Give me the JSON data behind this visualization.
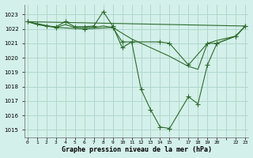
{
  "title": "Graphe pression niveau de la mer (hPa)",
  "background_color": "#d4f0ea",
  "grid_color": "#b0d8cc",
  "line_color": "#2d6b2d",
  "ylim": [
    1014.5,
    1023.7
  ],
  "yticks": [
    1015,
    1016,
    1017,
    1018,
    1019,
    1020,
    1021,
    1022,
    1023
  ],
  "xlim": [
    -0.3,
    23.3
  ],
  "xtick_labels": [
    "0",
    "1",
    "2",
    "3",
    "4",
    "5",
    "6",
    "7",
    "8",
    "9",
    "10",
    "11",
    "12",
    "13",
    "14",
    "15",
    "",
    "17",
    "18",
    "19",
    "20",
    "",
    "22",
    "23"
  ],
  "series1_x": [
    0,
    1,
    2,
    3,
    4,
    5,
    6,
    7,
    8,
    9,
    10,
    11,
    12,
    13,
    14,
    15,
    17,
    18,
    19,
    20,
    22,
    23
  ],
  "series1_y": [
    1022.5,
    1022.35,
    1022.2,
    1022.15,
    1022.5,
    1022.15,
    1022.15,
    1022.2,
    1023.2,
    1022.2,
    1020.7,
    1021.1,
    1017.8,
    1016.4,
    1015.2,
    1015.1,
    1017.3,
    1016.8,
    1019.5,
    1021.0,
    1021.5,
    1022.2
  ],
  "series2_x": [
    0,
    1,
    2,
    3,
    4,
    5,
    6,
    7,
    8,
    9,
    10,
    11,
    12,
    13,
    14,
    15,
    17,
    18,
    19,
    20,
    22,
    23
  ],
  "series2_y": [
    1022.5,
    1022.3,
    1022.2,
    1022.1,
    1022.3,
    1022.1,
    1022.1,
    1022.1,
    1022.2,
    1022.1,
    1021.7,
    1021.3,
    1021.0,
    1020.7,
    1020.4,
    1020.1,
    1019.4,
    1019.2,
    1021.0,
    1021.2,
    1021.5,
    1022.2
  ],
  "series3_x": [
    0,
    23
  ],
  "series3_y": [
    1022.5,
    1022.2
  ],
  "series4_x": [
    0,
    3,
    6,
    9,
    10,
    11,
    14,
    15,
    17,
    19,
    20,
    22,
    23
  ],
  "series4_y": [
    1022.5,
    1022.1,
    1022.0,
    1022.1,
    1021.1,
    1021.1,
    1021.1,
    1021.0,
    1019.5,
    1021.0,
    1021.0,
    1021.5,
    1022.2
  ]
}
